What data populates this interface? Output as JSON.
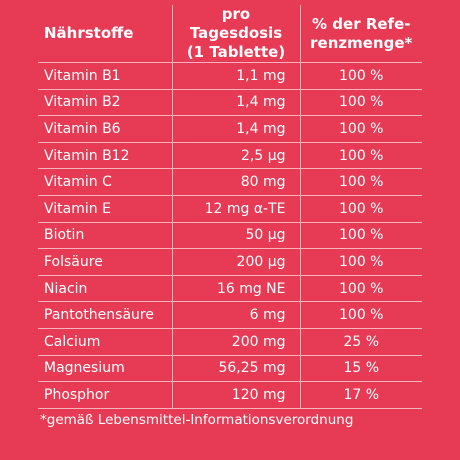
{
  "table": {
    "headers": [
      "Nährstoffe",
      "pro Tagesdosis\n(1 Tablette)",
      "% der Refe-\nrenzmenge*"
    ],
    "rows": [
      {
        "name": "Vitamin B1",
        "amount": "1,1 mg",
        "pct": "100 %"
      },
      {
        "name": "Vitamin B2",
        "amount": "1,4 mg",
        "pct": "100 %"
      },
      {
        "name": "Vitamin B6",
        "amount": "1,4 mg",
        "pct": "100 %"
      },
      {
        "name": "Vitamin B12",
        "amount": "2,5 µg",
        "pct": "100 %"
      },
      {
        "name": "Vitamin C",
        "amount": "80 mg",
        "pct": "100 %"
      },
      {
        "name": "Vitamin E",
        "amount": "12 mg α-TE",
        "pct": "100 %"
      },
      {
        "name": "Biotin",
        "amount": "50 µg",
        "pct": "100 %"
      },
      {
        "name": "Folsäure",
        "amount": "200 µg",
        "pct": "100 %"
      },
      {
        "name": "Niacin",
        "amount": "16 mg NE",
        "pct": "100 %"
      },
      {
        "name": "Pantothensäure",
        "amount": "6 mg",
        "pct": "100 %"
      },
      {
        "name": "Calcium",
        "amount": "200 mg",
        "pct": "25 %"
      },
      {
        "name": "Magnesium",
        "amount": "56,25 mg",
        "pct": "15 %"
      },
      {
        "name": "Phosphor",
        "amount": "120 mg",
        "pct": "17 %"
      }
    ]
  },
  "footnote": "*gemäß Lebensmittel-Informationsverordnung",
  "colors": {
    "background": "#e63a55",
    "text": "#ffffff",
    "grid": "#f4b3bd"
  }
}
